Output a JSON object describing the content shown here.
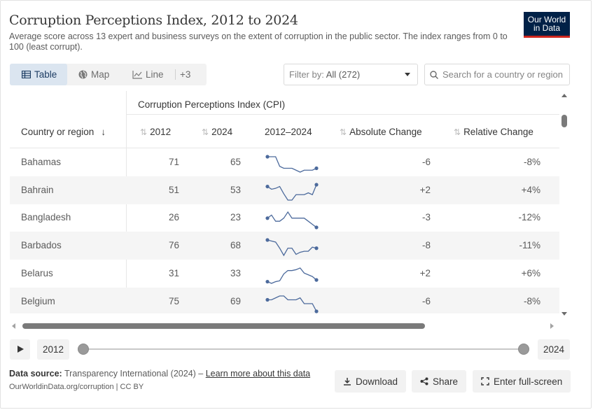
{
  "header": {
    "title": "Corruption Perceptions Index, 2012 to 2024",
    "subtitle": "Average score across 13 expert and business surveys on the extent of corruption in the public sector. The index ranges from 0 to 100 (least corrupt).",
    "logo_line1": "Our World",
    "logo_line2": "in Data",
    "logo_color": "#002147",
    "logo_accent": "#ce261e"
  },
  "tabs": [
    {
      "label": "Table",
      "icon": "table-icon",
      "active": true
    },
    {
      "label": "Map",
      "icon": "globe-icon",
      "active": false
    },
    {
      "label": "Line",
      "icon": "line-chart-icon",
      "active": false
    },
    {
      "label": "+3",
      "icon": "",
      "active": false
    }
  ],
  "filter": {
    "prefix": "Filter by: ",
    "value": "All (272)"
  },
  "search": {
    "placeholder": "Search for a country or region"
  },
  "table": {
    "super_header": "Corruption Perceptions Index (CPI)",
    "columns": {
      "country": "Country or region",
      "y2012": "2012",
      "y2024": "2024",
      "spark": "2012–2024",
      "abs": "Absolute Change",
      "rel": "Relative Change"
    },
    "rows": [
      {
        "country": "Bahamas",
        "v2012": "71",
        "v2024": "65",
        "abs": "-6",
        "rel": "-8%",
        "trend": [
          71,
          71,
          71,
          66,
          65,
          65,
          65,
          64,
          63,
          64,
          64,
          64,
          65
        ]
      },
      {
        "country": "Bahrain",
        "v2012": "51",
        "v2024": "53",
        "abs": "+2",
        "rel": "+4%",
        "trend": [
          51,
          48,
          49,
          51,
          43,
          36,
          36,
          42,
          42,
          42,
          44,
          42,
          53
        ]
      },
      {
        "country": "Bangladesh",
        "v2012": "26",
        "v2024": "23",
        "abs": "-3",
        "rel": "-12%",
        "trend": [
          26,
          27,
          25,
          25,
          26,
          28,
          26,
          26,
          26,
          26,
          25,
          24,
          23
        ]
      },
      {
        "country": "Barbados",
        "v2012": "76",
        "v2024": "68",
        "abs": "-8",
        "rel": "-11%",
        "trend": [
          76,
          75,
          74,
          68,
          61,
          68,
          68,
          62,
          64,
          65,
          65,
          69,
          68
        ]
      },
      {
        "country": "Belarus",
        "v2012": "31",
        "v2024": "33",
        "abs": "+2",
        "rel": "+6%",
        "trend": [
          31,
          29,
          31,
          32,
          40,
          44,
          44,
          45,
          47,
          41,
          39,
          37,
          33
        ]
      },
      {
        "country": "Belgium",
        "v2012": "75",
        "v2024": "69",
        "abs": "-6",
        "rel": "-8%",
        "trend": [
          75,
          75,
          76,
          77,
          77,
          75,
          75,
          75,
          76,
          73,
          73,
          73,
          69
        ]
      }
    ],
    "sparkline_color": "#4c6a9c"
  },
  "timeline": {
    "start_year": "2012",
    "end_year": "2024"
  },
  "footer": {
    "source_label": "Data source:",
    "source_text": " Transparency International (2024) – ",
    "learn_more": "Learn more about this data",
    "credit": "OurWorldinData.org/corruption | CC BY",
    "download": "Download",
    "share": "Share",
    "fullscreen": "Enter full-screen"
  }
}
